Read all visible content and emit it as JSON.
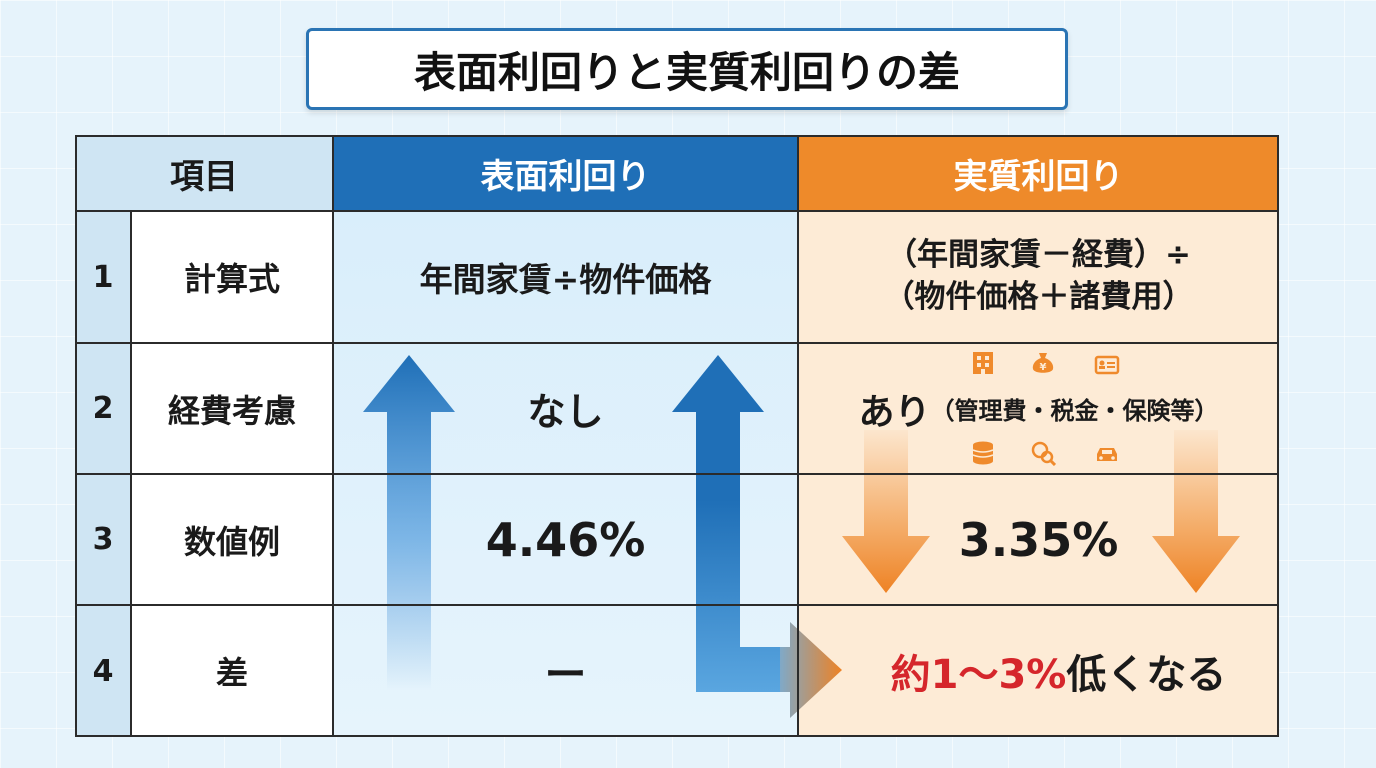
{
  "title": "表面利回りと実質利回りの差",
  "header": {
    "item": "項目",
    "surface": "表面利回り",
    "real": "実質利回り"
  },
  "rows": [
    {
      "num": "1",
      "item": "計算式",
      "surface": "年間家賃÷物件価格",
      "real_line1": "（年間家賃－経費）÷",
      "real_line2": "（物件価格＋諸費用）"
    },
    {
      "num": "2",
      "item": "経費考慮",
      "surface": "なし",
      "real_main": "あり",
      "real_detail": "（管理費・税金・保険等）"
    },
    {
      "num": "3",
      "item": "数値例",
      "surface": "4.46%",
      "real": "3.35%"
    },
    {
      "num": "4",
      "item": "差",
      "surface": "ー",
      "real_highlight": "約1～3%",
      "real_rest": "低くなる"
    }
  ],
  "icons": [
    "building-icon",
    "money-bag-icon",
    "id-card-icon",
    "coin-stack-icon",
    "magnifier-icon",
    "car-icon"
  ],
  "colors": {
    "surface_header": "#1f6fb7",
    "real_header": "#ee8a2a",
    "real_body": "#fdebd6",
    "surface_body": "#def0fb",
    "item_header": "#cfe5f3",
    "highlight": "#d5262b",
    "up_arrow": "#2a7fd0",
    "down_arrow": "#ef8a2c"
  }
}
